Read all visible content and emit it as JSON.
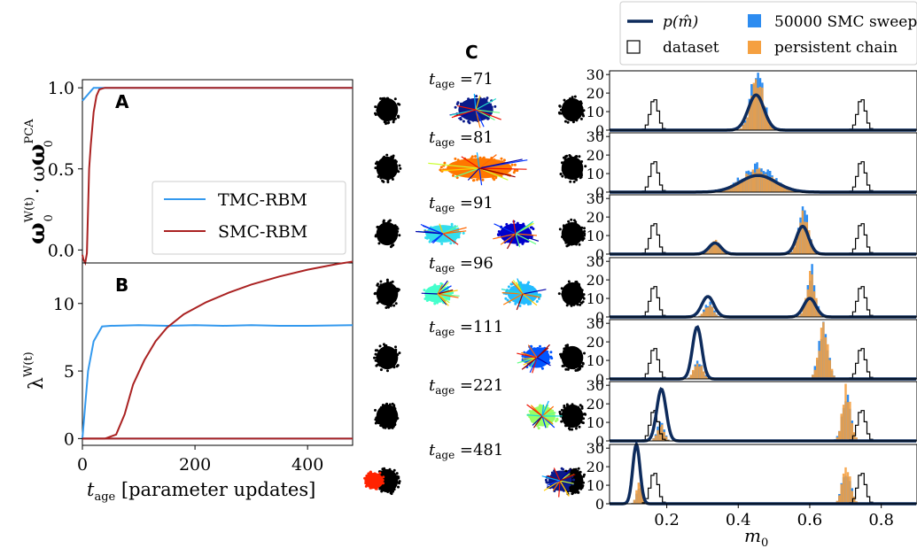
{
  "colors": {
    "tmc": "#3399ee",
    "smc": "#aa2222",
    "pm": "#0d2b5c",
    "sweeps": "#2d8cf0",
    "persistent": "#f5a040",
    "dataset_edge": "#000000",
    "cluster": "#000000"
  },
  "panels": {
    "a_label": "A",
    "b_label": "B",
    "c_label": "C"
  },
  "chart_data": [
    {
      "id": "A",
      "type": "line",
      "ylabel_main": "ω",
      "ylabel_sup": "W(t)",
      "ylabel_sub": "0",
      "ylabel_mid": " · ω",
      "ylabel_sup2": "PCA",
      "ylabel_sub2": "0",
      "xlim": [
        0,
        480
      ],
      "ylim": [
        -0.08,
        1.05
      ],
      "yticks": [
        "0.0",
        "0.5",
        "1.0"
      ],
      "ytick_values": [
        0.0,
        0.5,
        1.0
      ],
      "legend": [
        "TMC-RBM",
        "SMC-RBM"
      ],
      "series": [
        {
          "name": "TMC-RBM",
          "x": [
            0,
            5,
            10,
            15,
            20,
            30,
            480
          ],
          "y": [
            0.92,
            0.94,
            0.96,
            0.98,
            1.0,
            1.0,
            1.0
          ]
        },
        {
          "name": "SMC-RBM",
          "x": [
            0,
            2,
            5,
            8,
            10,
            12,
            15,
            20,
            25,
            30,
            40,
            480
          ],
          "y": [
            -0.03,
            -0.06,
            -0.08,
            -0.02,
            0.25,
            0.5,
            0.65,
            0.85,
            0.95,
            0.99,
            1.0,
            1.0
          ]
        }
      ]
    },
    {
      "id": "B",
      "type": "line",
      "ylabel": "λ",
      "ylabel_sup": "W(t)",
      "xlabel_main": "t",
      "xlabel_sub": "age",
      "xlabel_rest": " [parameter updates]",
      "xlim": [
        0,
        480
      ],
      "ylim": [
        -0.5,
        13
      ],
      "xticks": [
        "0",
        "200",
        "400"
      ],
      "xtick_values": [
        0,
        200,
        400
      ],
      "yticks": [
        "0",
        "5",
        "10"
      ],
      "ytick_values": [
        0,
        5,
        10
      ],
      "series": [
        {
          "name": "TMC-RBM top",
          "x": [
            0,
            10,
            20,
            35,
            50,
            100,
            150,
            200,
            250,
            300,
            350,
            400,
            480
          ],
          "y": [
            0,
            5,
            7.2,
            8.3,
            8.35,
            8.4,
            8.35,
            8.4,
            8.35,
            8.4,
            8.35,
            8.35,
            8.4
          ]
        },
        {
          "name": "TMC-RBM bottom",
          "x": [
            0,
            480
          ],
          "y": [
            0,
            0
          ]
        },
        {
          "name": "SMC-RBM top",
          "x": [
            0,
            40,
            60,
            75,
            90,
            110,
            130,
            150,
            180,
            220,
            260,
            300,
            350,
            400,
            450,
            480
          ],
          "y": [
            0,
            0,
            0.3,
            1.8,
            4.0,
            5.8,
            7.2,
            8.2,
            9.2,
            10.1,
            10.8,
            11.4,
            12.0,
            12.5,
            12.9,
            13.1
          ]
        },
        {
          "name": "SMC-RBM bottom",
          "x": [
            0,
            480
          ],
          "y": [
            0,
            0
          ]
        }
      ]
    },
    {
      "id": "C",
      "type": "scatter",
      "rows": [
        {
          "label_main": "t",
          "label_sub": "age",
          "label_val": " =71"
        },
        {
          "label_main": "t",
          "label_sub": "age",
          "label_val": " =81"
        },
        {
          "label_main": "t",
          "label_sub": "age",
          "label_val": " =91"
        },
        {
          "label_main": "t",
          "label_sub": "age",
          "label_val": " =96"
        },
        {
          "label_main": "t",
          "label_sub": "age",
          "label_val": " =111"
        },
        {
          "label_main": "t",
          "label_sub": "age",
          "label_val": " =221"
        },
        {
          "label_main": "t",
          "label_sub": "age",
          "label_val": " =481"
        }
      ]
    },
    {
      "id": "D",
      "type": "bar",
      "xlabel_main": "m",
      "xlabel_sub": "0",
      "xlim": [
        0.04,
        0.9
      ],
      "ylim": [
        0,
        32
      ],
      "xticks": [
        "0.2",
        "0.4",
        "0.6",
        "0.8"
      ],
      "xtick_values": [
        0.2,
        0.4,
        0.6,
        0.8
      ],
      "yticks": [
        "0",
        "10",
        "20",
        "30"
      ],
      "ytick_values": [
        0,
        10,
        20,
        30
      ],
      "legend": [
        {
          "key": "pm",
          "label": "p(m̂)"
        },
        {
          "key": "sweeps",
          "label": "50000 SMC sweeps"
        },
        {
          "key": "dataset",
          "label": "dataset"
        },
        {
          "key": "persistent",
          "label": "persistent chain"
        }
      ],
      "dataset_peaks": [
        0.165,
        0.745
      ],
      "dataset_height": 17,
      "rows": [
        {
          "curve": [
            {
              "mu": 0.45,
              "sigma": 0.022,
              "h": 19
            }
          ],
          "hist": [
            {
              "mu": 0.45,
              "sigma": 0.018,
              "h": 29
            }
          ]
        },
        {
          "curve": [
            {
              "mu": 0.455,
              "sigma": 0.05,
              "h": 9
            }
          ],
          "hist": [
            {
              "mu": 0.45,
              "sigma": 0.045,
              "h": 13
            }
          ]
        },
        {
          "curve": [
            {
              "mu": 0.335,
              "sigma": 0.017,
              "h": 6
            },
            {
              "mu": 0.58,
              "sigma": 0.017,
              "h": 15
            }
          ],
          "hist": [
            {
              "mu": 0.335,
              "sigma": 0.015,
              "h": 7
            },
            {
              "mu": 0.58,
              "sigma": 0.014,
              "h": 22
            }
          ]
        },
        {
          "curve": [
            {
              "mu": 0.315,
              "sigma": 0.017,
              "h": 11
            },
            {
              "mu": 0.6,
              "sigma": 0.017,
              "h": 10
            }
          ],
          "hist": [
            {
              "mu": 0.315,
              "sigma": 0.012,
              "h": 7
            },
            {
              "mu": 0.6,
              "sigma": 0.012,
              "h": 25
            }
          ]
        },
        {
          "curve": [
            {
              "mu": 0.285,
              "sigma": 0.013,
              "h": 28
            }
          ],
          "hist": [
            {
              "mu": 0.285,
              "sigma": 0.012,
              "h": 9
            },
            {
              "mu": 0.635,
              "sigma": 0.013,
              "h": 30
            }
          ]
        },
        {
          "curve": [
            {
              "mu": 0.185,
              "sigma": 0.013,
              "h": 28
            }
          ],
          "hist": [
            {
              "mu": 0.18,
              "sigma": 0.01,
              "h": 9
            },
            {
              "mu": 0.7,
              "sigma": 0.012,
              "h": 29
            }
          ]
        },
        {
          "curve": [
            {
              "mu": 0.115,
              "sigma": 0.01,
              "h": 32
            }
          ],
          "hist": [
            {
              "mu": 0.12,
              "sigma": 0.008,
              "h": 11
            },
            {
              "mu": 0.7,
              "sigma": 0.012,
              "h": 20
            }
          ]
        }
      ]
    }
  ]
}
